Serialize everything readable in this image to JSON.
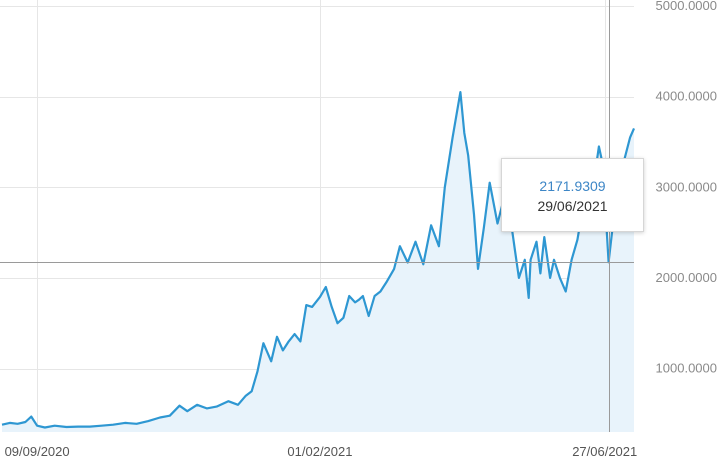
{
  "chart_data": {
    "type": "area",
    "title": "",
    "xlabel": "",
    "ylabel": "",
    "ylim": [
      300,
      5000
    ],
    "y_ticks": [
      "5000.0000",
      "4000.0000",
      "3000.0000",
      "2000.0000",
      "1000.0000"
    ],
    "y_tick_values": [
      5000,
      4000,
      3000,
      2000,
      1000
    ],
    "x_ticks": [
      "09/09/2020",
      "01/02/2021",
      "27/06/2021"
    ],
    "x_tick_dates": [
      "2020-09-09",
      "2021-02-01",
      "2021-06-27"
    ],
    "xlim": [
      "2020-08-22",
      "2021-07-12"
    ],
    "grid": true,
    "line_color": "#2e97d2",
    "fill_color": "#e8f3fb",
    "series": [
      {
        "x": [
          "2020-08-22",
          "2020-08-26",
          "2020-08-30",
          "2020-09-03",
          "2020-09-06",
          "2020-09-09",
          "2020-09-13",
          "2020-09-18",
          "2020-09-24",
          "2020-09-30",
          "2020-10-06",
          "2020-10-12",
          "2020-10-18",
          "2020-10-24",
          "2020-10-30",
          "2020-11-05",
          "2020-11-11",
          "2020-11-16",
          "2020-11-21",
          "2020-11-25",
          "2020-11-30",
          "2020-12-05",
          "2020-12-10",
          "2020-12-16",
          "2020-12-21",
          "2020-12-25",
          "2020-12-28",
          "2020-12-31",
          "2021-01-03",
          "2021-01-07",
          "2021-01-10",
          "2021-01-13",
          "2021-01-16",
          "2021-01-19",
          "2021-01-22",
          "2021-01-25",
          "2021-01-28",
          "2021-02-01",
          "2021-02-04",
          "2021-02-07",
          "2021-02-10",
          "2021-02-13",
          "2021-02-16",
          "2021-02-19",
          "2021-02-21",
          "2021-02-23",
          "2021-02-26",
          "2021-03-01",
          "2021-03-04",
          "2021-03-07",
          "2021-03-11",
          "2021-03-14",
          "2021-03-18",
          "2021-03-22",
          "2021-03-26",
          "2021-03-30",
          "2021-04-03",
          "2021-04-06",
          "2021-04-10",
          "2021-04-14",
          "2021-04-16",
          "2021-04-18",
          "2021-04-21",
          "2021-04-23",
          "2021-04-26",
          "2021-04-29",
          "2021-05-03",
          "2021-05-06",
          "2021-05-09",
          "2021-05-11",
          "2021-05-12",
          "2021-05-14",
          "2021-05-17",
          "2021-05-19",
          "2021-05-20",
          "2021-05-23",
          "2021-05-25",
          "2021-05-27",
          "2021-05-30",
          "2021-06-01",
          "2021-06-04",
          "2021-06-07",
          "2021-06-10",
          "2021-06-13",
          "2021-06-16",
          "2021-06-19",
          "2021-06-22",
          "2021-06-24",
          "2021-06-26",
          "2021-06-29",
          "2021-07-01",
          "2021-07-04",
          "2021-07-07",
          "2021-07-10",
          "2021-07-12"
        ],
        "y": [
          380,
          400,
          390,
          410,
          470,
          370,
          350,
          370,
          355,
          360,
          360,
          370,
          380,
          400,
          390,
          420,
          460,
          480,
          590,
          530,
          600,
          560,
          580,
          640,
          600,
          700,
          750,
          970,
          1280,
          1080,
          1350,
          1200,
          1300,
          1380,
          1300,
          1700,
          1680,
          1790,
          1900,
          1680,
          1500,
          1560,
          1800,
          1730,
          1760,
          1800,
          1580,
          1800,
          1850,
          1950,
          2100,
          2350,
          2170,
          2400,
          2150,
          2580,
          2350,
          3000,
          3550,
          4050,
          3600,
          3350,
          2700,
          2100,
          2550,
          3050,
          2600,
          2850,
          2750,
          2450,
          2300,
          2000,
          2200,
          1780,
          2200,
          2400,
          2050,
          2450,
          2000,
          2200,
          2000,
          1850,
          2200,
          2420,
          2800,
          2680,
          3150,
          3450,
          3250,
          2171.9309,
          2550,
          2950,
          3300,
          3550,
          3650
        ]
      }
    ]
  },
  "tooltip": {
    "value": "2171.9309",
    "date": "29/06/2021"
  },
  "crosshair": {
    "date": "2021-06-29",
    "value": 2171.9309
  }
}
